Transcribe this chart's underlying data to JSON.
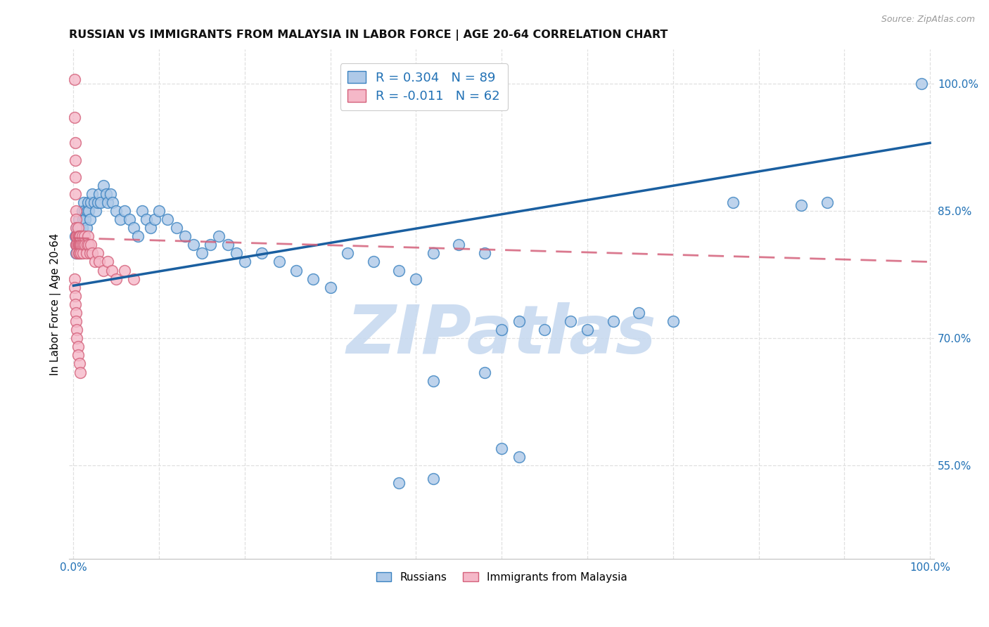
{
  "title": "RUSSIAN VS IMMIGRANTS FROM MALAYSIA IN LABOR FORCE | AGE 20-64 CORRELATION CHART",
  "source": "Source: ZipAtlas.com",
  "ylabel": "In Labor Force | Age 20-64",
  "xlim": [
    -0.005,
    1.005
  ],
  "ylim": [
    0.44,
    1.04
  ],
  "yticks": [
    0.55,
    0.7,
    0.85,
    1.0
  ],
  "ytick_labels": [
    "55.0%",
    "70.0%",
    "85.0%",
    "100.0%"
  ],
  "xtick_labels": [
    "0.0%",
    "",
    "",
    "",
    "",
    "",
    "",
    "",
    "",
    "",
    "100.0%"
  ],
  "blue_R": 0.304,
  "blue_N": 89,
  "pink_R": -0.011,
  "pink_N": 62,
  "blue_face": "#aec9e8",
  "blue_edge": "#3a82c0",
  "pink_face": "#f5b8c8",
  "pink_edge": "#d4607a",
  "blue_line_color": "#1a5fa0",
  "pink_line_color": "#d4607a",
  "watermark": "ZIPatlas",
  "legend_label_blue": "Russians",
  "legend_label_pink": "Immigrants from Malaysia",
  "axis_label_color": "#2171b5",
  "grid_color": "#e0e0e0",
  "blue_line_intercept": 0.762,
  "blue_line_slope": 0.168,
  "pink_line_intercept": 0.818,
  "pink_line_slope": -0.028,
  "blue_x": [
    0.002,
    0.003,
    0.003,
    0.004,
    0.004,
    0.005,
    0.005,
    0.006,
    0.006,
    0.007,
    0.007,
    0.008,
    0.008,
    0.009,
    0.009,
    0.01,
    0.01,
    0.011,
    0.012,
    0.013,
    0.014,
    0.015,
    0.016,
    0.017,
    0.018,
    0.019,
    0.02,
    0.022,
    0.024,
    0.026,
    0.028,
    0.03,
    0.032,
    0.035,
    0.038,
    0.04,
    0.043,
    0.046,
    0.05,
    0.055,
    0.06,
    0.065,
    0.07,
    0.075,
    0.08,
    0.085,
    0.09,
    0.095,
    0.1,
    0.11,
    0.12,
    0.13,
    0.14,
    0.15,
    0.16,
    0.17,
    0.18,
    0.19,
    0.2,
    0.22,
    0.24,
    0.26,
    0.28,
    0.3,
    0.32,
    0.35,
    0.38,
    0.4,
    0.42,
    0.45,
    0.48,
    0.5,
    0.52,
    0.55,
    0.58,
    0.6,
    0.63,
    0.66,
    0.7,
    0.77,
    0.85,
    0.88,
    0.99,
    0.38,
    0.42,
    0.5,
    0.52,
    0.42,
    0.48
  ],
  "blue_y": [
    0.82,
    0.81,
    0.8,
    0.82,
    0.83,
    0.81,
    0.8,
    0.82,
    0.84,
    0.83,
    0.82,
    0.83,
    0.81,
    0.82,
    0.8,
    0.83,
    0.85,
    0.84,
    0.86,
    0.85,
    0.84,
    0.83,
    0.85,
    0.86,
    0.85,
    0.84,
    0.86,
    0.87,
    0.86,
    0.85,
    0.86,
    0.87,
    0.86,
    0.88,
    0.87,
    0.86,
    0.87,
    0.86,
    0.85,
    0.84,
    0.85,
    0.84,
    0.83,
    0.82,
    0.85,
    0.84,
    0.83,
    0.84,
    0.85,
    0.84,
    0.83,
    0.82,
    0.81,
    0.8,
    0.81,
    0.82,
    0.81,
    0.8,
    0.79,
    0.8,
    0.79,
    0.78,
    0.77,
    0.76,
    0.8,
    0.79,
    0.78,
    0.77,
    0.8,
    0.81,
    0.8,
    0.71,
    0.72,
    0.71,
    0.72,
    0.71,
    0.72,
    0.73,
    0.72,
    0.86,
    0.857,
    0.86,
    1.0,
    0.53,
    0.535,
    0.57,
    0.56,
    0.65,
    0.66
  ],
  "pink_x": [
    0.001,
    0.001,
    0.002,
    0.002,
    0.002,
    0.002,
    0.003,
    0.003,
    0.003,
    0.003,
    0.003,
    0.004,
    0.004,
    0.004,
    0.004,
    0.005,
    0.005,
    0.005,
    0.006,
    0.006,
    0.006,
    0.007,
    0.007,
    0.007,
    0.008,
    0.008,
    0.009,
    0.009,
    0.01,
    0.01,
    0.011,
    0.012,
    0.013,
    0.014,
    0.015,
    0.016,
    0.017,
    0.018,
    0.019,
    0.02,
    0.022,
    0.025,
    0.028,
    0.03,
    0.035,
    0.04,
    0.045,
    0.05,
    0.06,
    0.07,
    0.001,
    0.001,
    0.002,
    0.002,
    0.003,
    0.003,
    0.004,
    0.004,
    0.005,
    0.005,
    0.007,
    0.008
  ],
  "pink_y": [
    1.005,
    0.96,
    0.93,
    0.91,
    0.89,
    0.87,
    0.85,
    0.84,
    0.83,
    0.82,
    0.81,
    0.82,
    0.81,
    0.8,
    0.82,
    0.81,
    0.82,
    0.83,
    0.82,
    0.81,
    0.8,
    0.82,
    0.81,
    0.8,
    0.81,
    0.82,
    0.81,
    0.8,
    0.82,
    0.81,
    0.8,
    0.81,
    0.82,
    0.81,
    0.8,
    0.81,
    0.82,
    0.81,
    0.8,
    0.81,
    0.8,
    0.79,
    0.8,
    0.79,
    0.78,
    0.79,
    0.78,
    0.77,
    0.78,
    0.77,
    0.77,
    0.76,
    0.75,
    0.74,
    0.73,
    0.72,
    0.71,
    0.7,
    0.69,
    0.68,
    0.67,
    0.66
  ]
}
